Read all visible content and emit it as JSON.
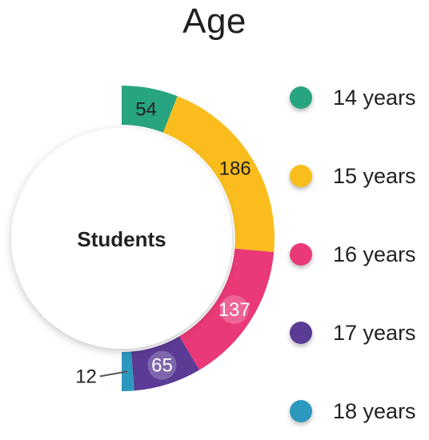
{
  "chart_data": {
    "type": "pie",
    "title": "Age",
    "center_label": "Students",
    "categories": [
      "14 years",
      "15 years",
      "16 years",
      "17 years",
      "18 years"
    ],
    "values": [
      54,
      186,
      137,
      65,
      12
    ],
    "colors": [
      "#27a581",
      "#fbbd1d",
      "#ea3978",
      "#5a3b95",
      "#2d98bd"
    ],
    "label_colors": [
      "#1f1f1f",
      "#1f1f1f",
      "#ffffff",
      "#ffffff",
      "#1f1f1f"
    ],
    "shape": "half-donut (right side)",
    "legend_position": "right"
  }
}
